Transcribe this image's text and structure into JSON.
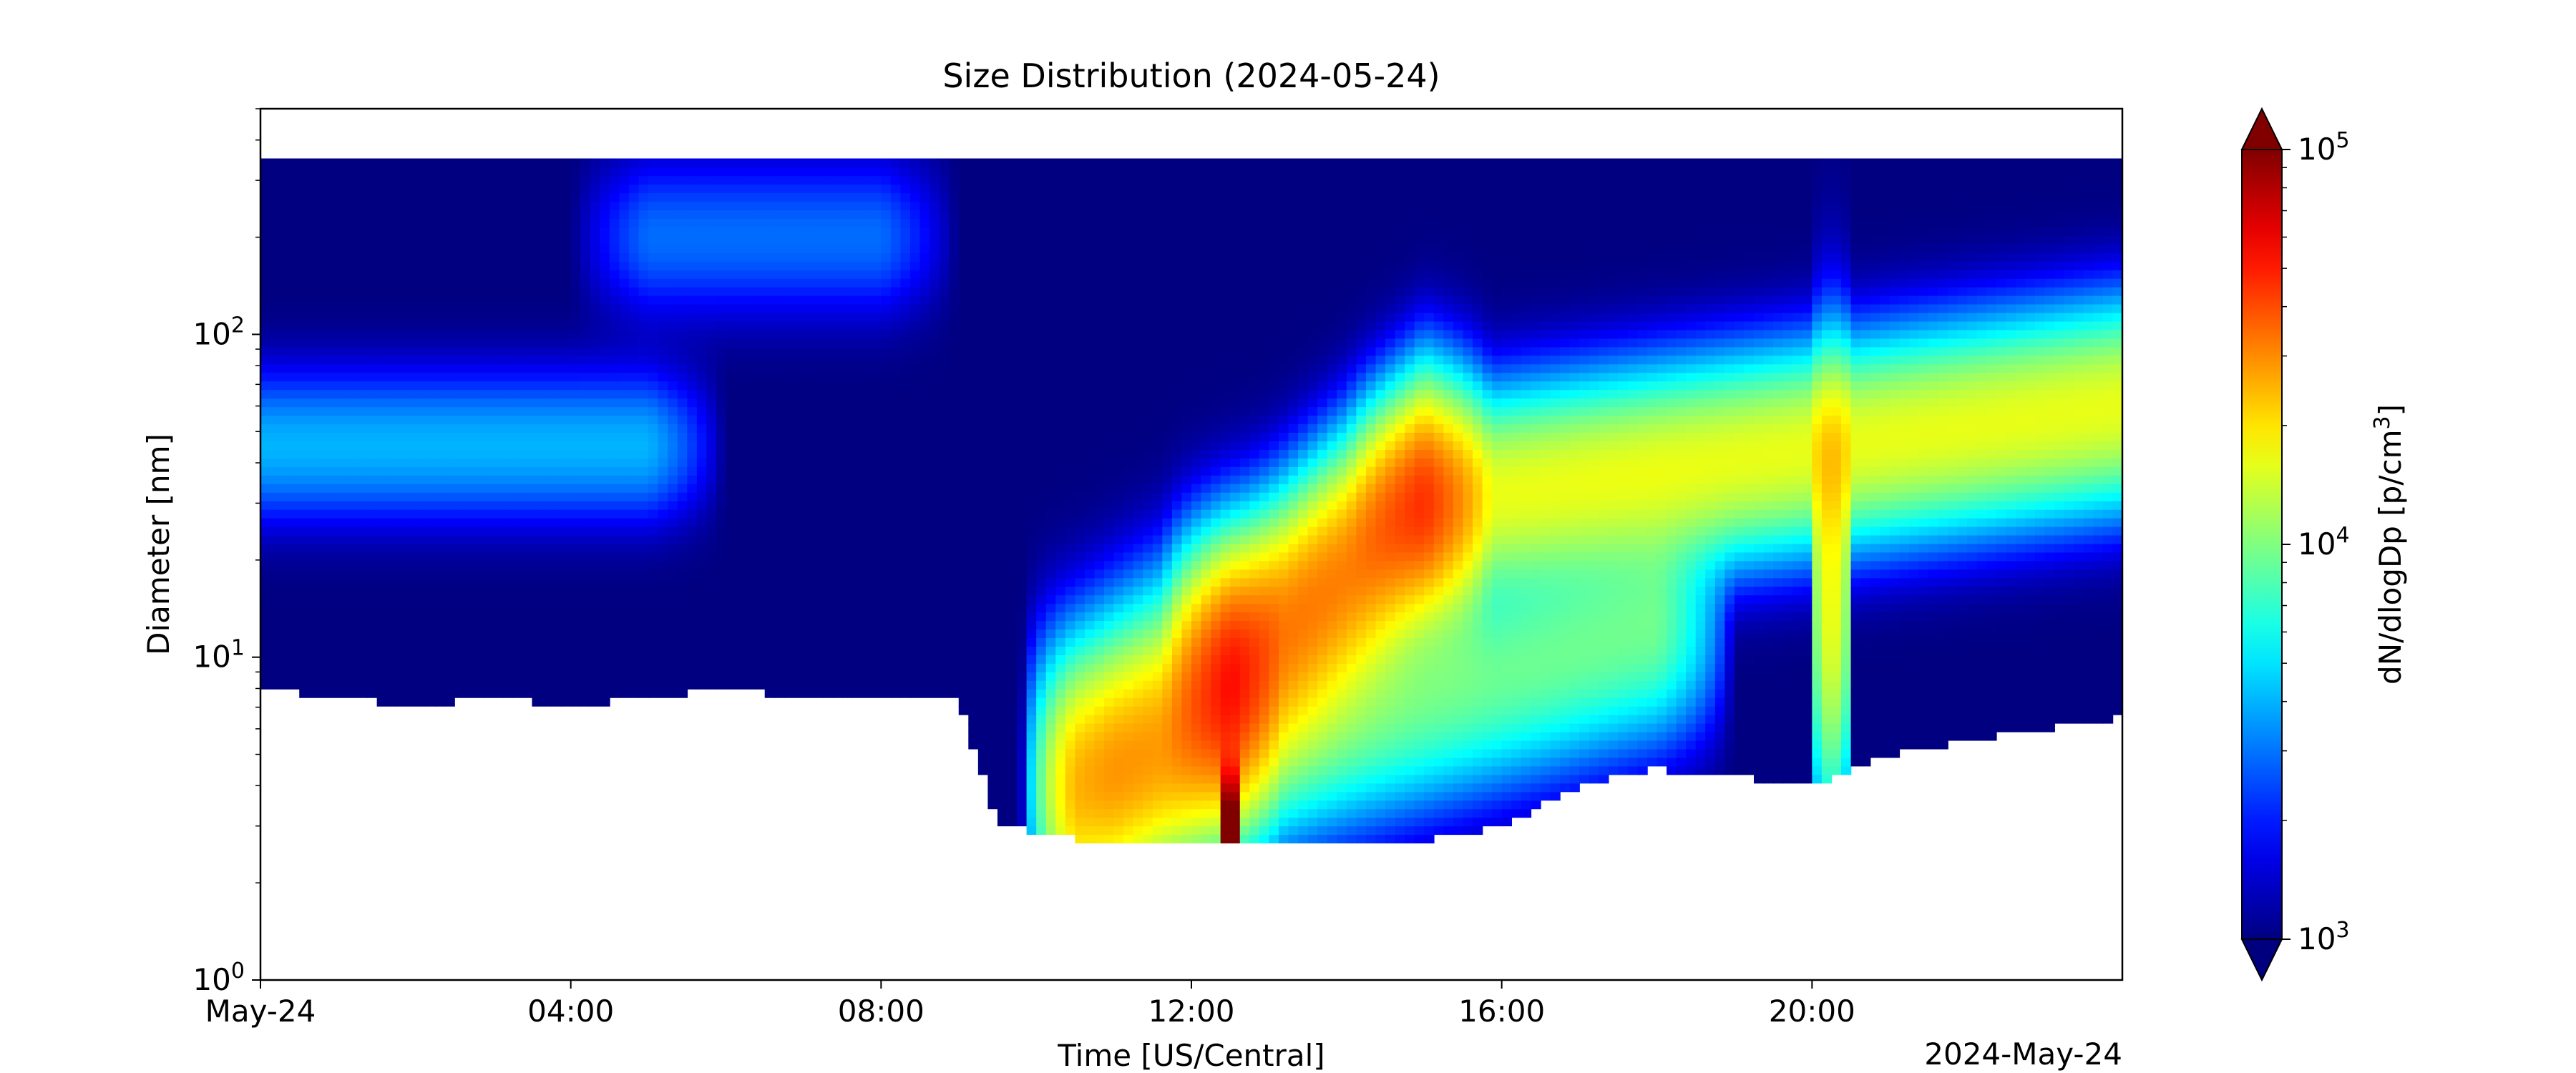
{
  "chart_data": {
    "type": "heatmap",
    "title": "Size Distribution (2024-05-24)",
    "xlabel": "Time [US/Central]",
    "ylabel": "Diameter [nm]",
    "x_offset_label": "2024-May-24",
    "x_ticks": [
      "May-24",
      "04:00",
      "08:00",
      "12:00",
      "16:00",
      "20:00"
    ],
    "y_scale": "log",
    "y_ticks": [
      {
        "base": "10",
        "exp": "0"
      },
      {
        "base": "10",
        "exp": "1"
      },
      {
        "base": "10",
        "exp": "2"
      }
    ],
    "xlim_hours": [
      0,
      24
    ],
    "ylim_nm": [
      1,
      500
    ],
    "colorbar": {
      "label_main": "dN/dlogDp [p/cm",
      "label_sup": "3",
      "label_end": "]",
      "scale": "log",
      "range": [
        1000,
        100000
      ],
      "ticks": [
        {
          "base": "10",
          "exp": "3"
        },
        {
          "base": "10",
          "exp": "4"
        },
        {
          "base": "10",
          "exp": "5"
        }
      ],
      "colormap": "jet",
      "extend": "both"
    },
    "background_level": 1000,
    "upper_size_limit_nm": 350,
    "modes": [
      {
        "t_start": 0.0,
        "t_end": 5.0,
        "d_peak_nm": 45,
        "width_log10": 0.14,
        "amplitude": 3000
      },
      {
        "t_start": 5.0,
        "t_end": 8.0,
        "d_peak_nm": 200,
        "width_log10": 0.15,
        "amplitude": 1900
      },
      {
        "t_start": 10.5,
        "t_end": 12.5,
        "d_start_nm": 4,
        "d_end_nm": 8,
        "width_log10": 0.25,
        "amplitude": 20000
      },
      {
        "t_start": 12.5,
        "t_end": 15.0,
        "d_start_nm": 9,
        "d_end_nm": 30,
        "width_log10": 0.22,
        "amplitude": 30000
      },
      {
        "t_start": 15.0,
        "t_end": 24.0,
        "d_start_nm": 30,
        "d_end_nm": 60,
        "width_log10": 0.18,
        "amplitude": 15000
      },
      {
        "t_start": 11.0,
        "t_end": 18.0,
        "d_start_nm": 4,
        "d_end_nm": 12,
        "width_log10": 0.2,
        "amplitude": 8000
      },
      {
        "t_start": 20.1,
        "t_end": 20.4,
        "d_peak_nm": 15,
        "width_log10": 0.4,
        "amplitude": 15000
      },
      {
        "t_start": 12.4,
        "t_end": 12.6,
        "d_peak_nm": 3,
        "width_log10": 0.1,
        "amplitude": 100000
      }
    ],
    "lower_detection_edge_nm": [
      {
        "t": 0.0,
        "d": 8.0
      },
      {
        "t": 1.0,
        "d": 7.5
      },
      {
        "t": 2.0,
        "d": 7.0
      },
      {
        "t": 3.0,
        "d": 7.5
      },
      {
        "t": 4.0,
        "d": 7.0
      },
      {
        "t": 5.0,
        "d": 7.5
      },
      {
        "t": 6.0,
        "d": 8.0
      },
      {
        "t": 7.0,
        "d": 7.5
      },
      {
        "t": 8.0,
        "d": 7.5
      },
      {
        "t": 9.0,
        "d": 7.5
      },
      {
        "t": 9.5,
        "d": 3.0
      },
      {
        "t": 11.0,
        "d": 2.6
      },
      {
        "t": 13.0,
        "d": 2.6
      },
      {
        "t": 15.0,
        "d": 2.7
      },
      {
        "t": 16.0,
        "d": 3.0
      },
      {
        "t": 17.0,
        "d": 4.0
      },
      {
        "t": 18.0,
        "d": 4.5
      },
      {
        "t": 20.0,
        "d": 4.0
      },
      {
        "t": 21.0,
        "d": 5.0
      },
      {
        "t": 22.0,
        "d": 5.5
      },
      {
        "t": 23.0,
        "d": 6.0
      },
      {
        "t": 24.0,
        "d": 6.5
      }
    ]
  }
}
